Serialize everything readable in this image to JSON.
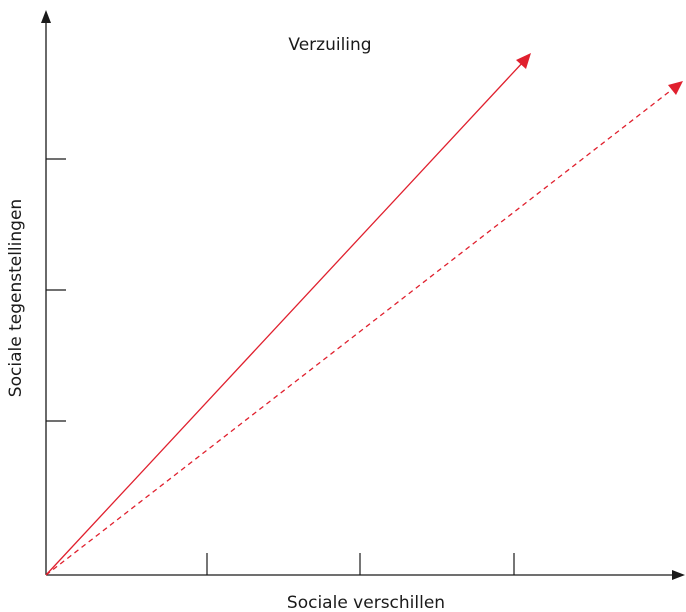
{
  "diagram": {
    "axes": {
      "x_label": "Sociale verschillen",
      "y_label": "Sociale tegenstellingen"
    },
    "annotations": {
      "solid_line_label": "Verzuiling"
    },
    "colors": {
      "axis": "#1a1a1a",
      "arrow": "#e0202e"
    },
    "lines": [
      {
        "style": "solid",
        "color": "#e0202e"
      },
      {
        "style": "dashed",
        "color": "#e0202e"
      }
    ]
  }
}
